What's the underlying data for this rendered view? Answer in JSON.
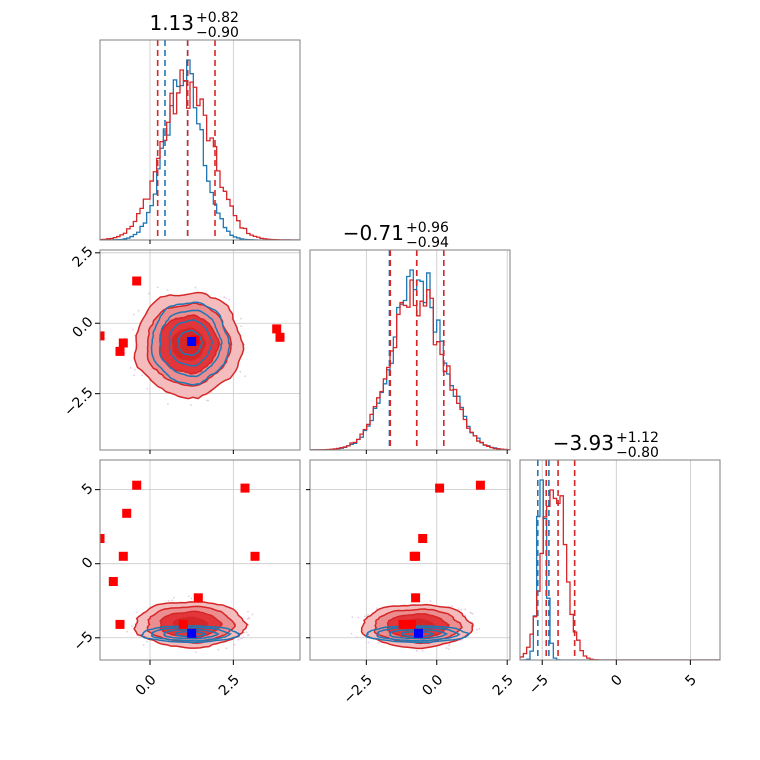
{
  "chart_data": {
    "type": "corner",
    "colors": {
      "reference": "#1f77b4",
      "model": "#d62728",
      "truth_marker": "#0000ff",
      "sample_marker": "#ff0000"
    },
    "series": [
      {
        "name": "",
        "color": "#1f77b4"
      },
      {
        "name": "",
        "color": "#d62728"
      }
    ],
    "parameters": [
      {
        "range": [
          -1.5,
          4.5
        ],
        "ticks": [
          0.0,
          2.5
        ],
        "tick_labels": [
          "0.0",
          "2.5"
        ],
        "title": {
          "main": "1.13",
          "plus": "+0.82",
          "minus": "−0.90"
        },
        "median": 1.13,
        "err_plus": 0.82,
        "err_minus": 0.9,
        "quantiles_blue": [
          0.45,
          1.13
        ],
        "quantiles_red": [
          0.23,
          1.13,
          1.95
        ],
        "truth": 1.25
      },
      {
        "range": [
          -4.5,
          2.6
        ],
        "ticks": [
          -2.5,
          0.0,
          2.5
        ],
        "tick_labels": [
          "−2.5",
          "0.0",
          "2.5"
        ],
        "title": {
          "main": "−0.71",
          "plus": "+0.96",
          "minus": "−0.94"
        },
        "median": -0.71,
        "err_plus": 0.96,
        "err_minus": 0.94,
        "quantiles_blue": [
          -1.68,
          -0.71
        ],
        "quantiles_red": [
          -1.65,
          -0.71,
          0.25
        ],
        "truth": -0.65
      },
      {
        "range": [
          -6.5,
          7.0
        ],
        "ticks": [
          -5,
          0,
          5
        ],
        "tick_labels": [
          "−5",
          "0",
          "5"
        ],
        "title": {
          "main": "−3.93",
          "plus": "+1.12",
          "minus": "−0.80"
        },
        "median": -3.93,
        "err_plus": 1.12,
        "err_minus": 0.8,
        "quantiles_blue": [
          -5.3,
          -4.55
        ],
        "quantiles_red": [
          -4.73,
          -3.93,
          -2.81
        ],
        "truth": -4.7
      }
    ],
    "marginal_hist": {
      "p0": {
        "blue": {
          "mu": 1.0,
          "sigma": 0.55
        },
        "red": {
          "mu": 1.1,
          "sigma": 0.75
        }
      },
      "p1": {
        "blue": {
          "mu": -0.65,
          "sigma": 0.9
        },
        "red": {
          "mu": -0.7,
          "sigma": 0.92
        }
      },
      "p2": {
        "blue": {
          "mu": -5.0,
          "sigma": 0.28
        },
        "red": {
          "mu": -4.2,
          "sigma": 0.75
        }
      }
    },
    "contours": {
      "p1_vs_p0": {
        "blue": {
          "cx": 1.2,
          "cy": -0.7,
          "rx": 1.15,
          "ry": 1.45
        },
        "red": {
          "cx": 1.15,
          "cy": -0.75,
          "rx": 1.6,
          "ry": 1.85
        }
      },
      "p2_vs_p0": {
        "blue": {
          "cx": 1.2,
          "cy": -4.75,
          "rx": 1.45,
          "ry": 0.55
        },
        "red": {
          "cx": 1.2,
          "cy": -4.1,
          "rx": 1.65,
          "ry": 1.55
        }
      },
      "p2_vs_p1": {
        "blue": {
          "cx": -0.7,
          "cy": -4.75,
          "rx": 1.8,
          "ry": 0.55
        },
        "red": {
          "cx": -0.7,
          "cy": -4.2,
          "rx": 1.95,
          "ry": 1.45
        }
      }
    },
    "sample_points": {
      "p1_vs_p0": [
        [
          -1.5,
          -0.45
        ],
        [
          -0.8,
          -0.7
        ],
        [
          -0.9,
          -1.0
        ],
        [
          -0.4,
          1.5
        ],
        [
          3.9,
          -0.5
        ],
        [
          3.8,
          -0.2
        ],
        [
          1.35,
          -0.6
        ]
      ],
      "p2_vs_p0": [
        [
          -1.5,
          1.7
        ],
        [
          -0.4,
          5.3
        ],
        [
          -0.7,
          3.4
        ],
        [
          -0.8,
          0.5
        ],
        [
          -1.1,
          -1.2
        ],
        [
          -0.9,
          -4.1
        ],
        [
          2.85,
          5.1
        ],
        [
          3.15,
          0.5
        ],
        [
          1.45,
          -2.3
        ],
        [
          1.0,
          -4.1
        ]
      ],
      "p2_vs_p1": [
        [
          0.1,
          5.1
        ],
        [
          1.55,
          5.3
        ],
        [
          -0.5,
          1.7
        ],
        [
          -0.75,
          0.5
        ],
        [
          -0.8,
          0.5
        ],
        [
          -0.75,
          -2.3
        ],
        [
          -0.9,
          -4.1
        ],
        [
          -1.2,
          -4.1
        ]
      ]
    }
  }
}
